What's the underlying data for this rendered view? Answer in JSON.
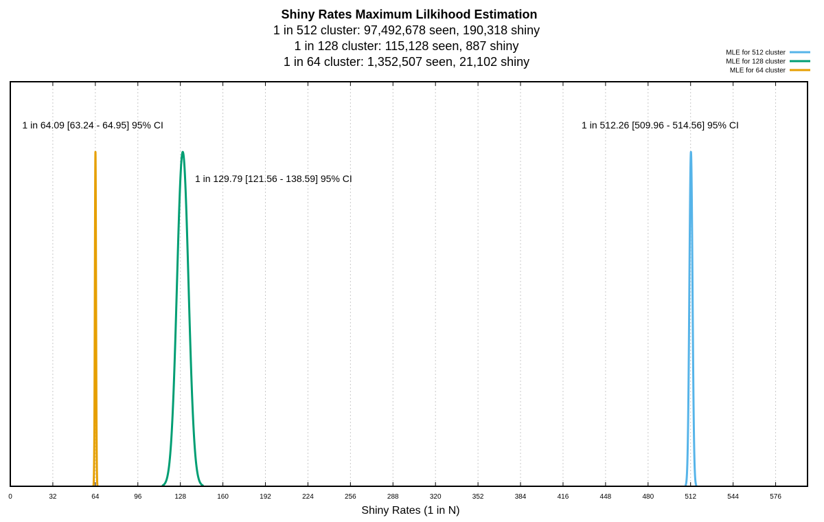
{
  "chart_data": {
    "type": "line",
    "title": "Shiny Rates Maximum Lilkihood Estimation",
    "subtitles": [
      "1 in 512 cluster: 97,492,678 seen, 190,318 shiny",
      "1 in 128 cluster: 115,128 seen, 887 shiny",
      "1 in 64 cluster: 1,352,507 seen, 21,102 shiny"
    ],
    "xlabel": "Shiny Rates (1 in N)",
    "ylabel": "",
    "xlim": [
      0,
      600
    ],
    "ylim": [
      0,
      1.21
    ],
    "xticks": [
      0,
      32,
      64,
      96,
      128,
      160,
      192,
      224,
      256,
      288,
      320,
      352,
      384,
      416,
      448,
      480,
      512,
      544,
      576
    ],
    "grid": "vertical dotted",
    "legend_position": "top-right",
    "series": [
      {
        "name": "MLE for 512 cluster",
        "color": "#56b4e9",
        "mean": 512.26,
        "sigma": 1.17,
        "peak": 1.0
      },
      {
        "name": "MLE for 128 cluster",
        "color": "#009e73",
        "mean": 129.79,
        "sigma": 4.35,
        "peak": 1.0
      },
      {
        "name": "MLE for 64 cluster",
        "color": "#e69f00",
        "mean": 64.09,
        "sigma": 0.44,
        "peak": 1.0
      }
    ],
    "annotations": [
      {
        "text": "1 in 64.09 [63.24 - 64.95] 95% CI",
        "x": 9,
        "y": 1.07
      },
      {
        "text": "1 in 129.79 [121.56 - 138.59] 95% CI",
        "x": 139,
        "y": 0.91
      },
      {
        "text": "1 in 512.26 [509.96 - 514.56] 95% CI",
        "x": 430,
        "y": 1.07
      }
    ]
  }
}
